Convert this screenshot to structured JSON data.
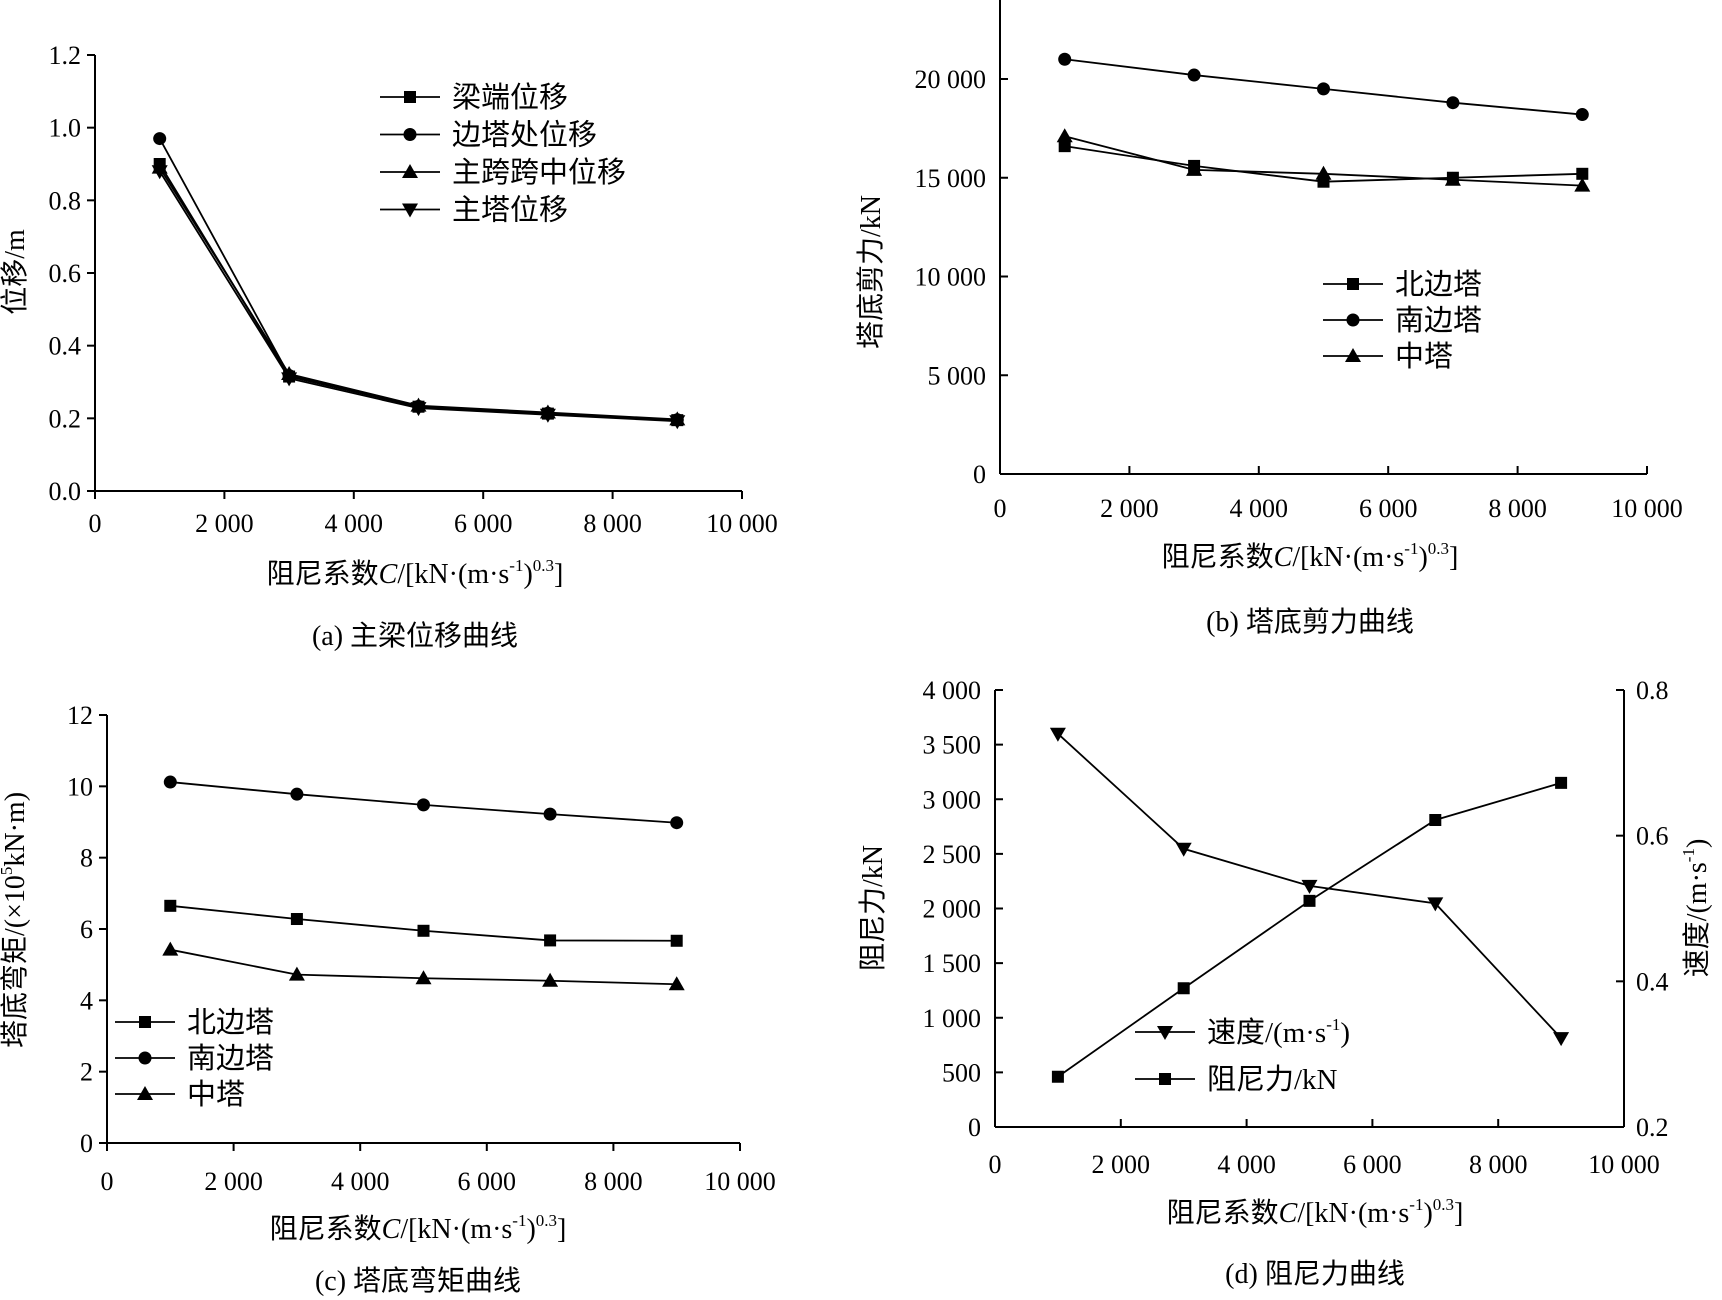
{
  "chart_data": [
    {
      "id": "a",
      "type": "line",
      "caption": "(a) 主梁位移曲线",
      "xlabel": "阻尼系数",
      "xlabel_var": "C",
      "xlabel_unit": "/[kN·(m·s",
      "xlabel_sup1": "-1",
      "xlabel_mid": ")",
      "xlabel_sup2": "0.3",
      "xlabel_end": "]",
      "ylabel": "位移/m",
      "xlim": [
        0,
        10000
      ],
      "ylim": [
        0,
        1.2
      ],
      "xticks": [
        0,
        2000,
        4000,
        6000,
        8000,
        10000
      ],
      "xtick_labels": [
        "0",
        "2 000",
        "4 000",
        "6 000",
        "8 000",
        "10 000"
      ],
      "yticks": [
        0,
        0.2,
        0.4,
        0.6,
        0.8,
        1.0,
        1.2
      ],
      "ytick_labels": [
        "0.0",
        "0.2",
        "0.4",
        "0.6",
        "0.8",
        "1.0",
        "1.2"
      ],
      "x": [
        1000,
        3000,
        5000,
        7000,
        9000
      ],
      "series": [
        {
          "name": "梁端位移",
          "marker": "square",
          "values": [
            0.9,
            0.315,
            0.232,
            0.213,
            0.195
          ]
        },
        {
          "name": "边塔处位移",
          "marker": "circle",
          "values": [
            0.97,
            0.318,
            0.233,
            0.214,
            0.196
          ]
        },
        {
          "name": "主跨跨中位移",
          "marker": "triangle-up",
          "values": [
            0.89,
            0.322,
            0.235,
            0.216,
            0.197
          ]
        },
        {
          "name": "主塔位移",
          "marker": "triangle-down",
          "values": [
            0.88,
            0.31,
            0.228,
            0.21,
            0.192
          ]
        }
      ]
    },
    {
      "id": "b",
      "type": "line",
      "caption": "(b) 塔底剪力曲线",
      "xlabel": "阻尼系数",
      "xlabel_var": "C",
      "xlabel_unit": "/[kN·(m·s",
      "xlabel_sup1": "-1",
      "xlabel_mid": ")",
      "xlabel_sup2": "0.3",
      "xlabel_end": "]",
      "ylabel": "塔底剪力/kN",
      "xlim": [
        0,
        10000
      ],
      "ylim": [
        0,
        24000
      ],
      "xticks": [
        0,
        2000,
        4000,
        6000,
        8000,
        10000
      ],
      "xtick_labels": [
        "0",
        "2 000",
        "4 000",
        "6 000",
        "8 000",
        "10 000"
      ],
      "yticks": [
        0,
        5000,
        10000,
        15000,
        20000
      ],
      "ytick_labels": [
        "0",
        "5 000",
        "10 000",
        "15 000",
        "20 000"
      ],
      "x": [
        1000,
        3000,
        5000,
        7000,
        9000
      ],
      "series": [
        {
          "name": "北边塔",
          "marker": "square",
          "values": [
            16600,
            15600,
            14800,
            15000,
            15200
          ]
        },
        {
          "name": "南边塔",
          "marker": "circle",
          "values": [
            21000,
            20200,
            19500,
            18800,
            18200
          ]
        },
        {
          "name": "中塔",
          "marker": "triangle-up",
          "values": [
            17100,
            15400,
            15200,
            14900,
            14600
          ]
        }
      ]
    },
    {
      "id": "c",
      "type": "line",
      "caption": "(c) 塔底弯矩曲线",
      "xlabel": "阻尼系数",
      "xlabel_var": "C",
      "xlabel_unit": "/[kN·(m·s",
      "xlabel_sup1": "-1",
      "xlabel_mid": ")",
      "xlabel_sup2": "0.3",
      "xlabel_end": "]",
      "ylabel_pre": "塔底弯矩/(×10",
      "ylabel_sup": "5",
      "ylabel_post": "kN·m)",
      "xlim": [
        0,
        10000
      ],
      "ylim": [
        0,
        12
      ],
      "xticks": [
        0,
        2000,
        4000,
        6000,
        8000,
        10000
      ],
      "xtick_labels": [
        "0",
        "2 000",
        "4 000",
        "6 000",
        "8 000",
        "10 000"
      ],
      "yticks": [
        0,
        2,
        4,
        6,
        8,
        10,
        12
      ],
      "ytick_labels": [
        "0",
        "2",
        "4",
        "6",
        "8",
        "10",
        "12"
      ],
      "x": [
        1000,
        3000,
        5000,
        7000,
        9000
      ],
      "series": [
        {
          "name": "北边塔",
          "marker": "square",
          "values": [
            6.65,
            6.28,
            5.95,
            5.68,
            5.67
          ]
        },
        {
          "name": "南边塔",
          "marker": "circle",
          "values": [
            10.12,
            9.78,
            9.48,
            9.22,
            8.98
          ]
        },
        {
          "name": "中塔",
          "marker": "triangle-up",
          "values": [
            5.42,
            4.72,
            4.62,
            4.55,
            4.45
          ]
        }
      ]
    },
    {
      "id": "d",
      "type": "line",
      "caption": "(d) 阻尼力曲线",
      "xlabel": "阻尼系数",
      "xlabel_var": "C",
      "xlabel_unit": "/[kN·(m·s",
      "xlabel_sup1": "-1",
      "xlabel_mid": ")",
      "xlabel_sup2": "0.3",
      "xlabel_end": "]",
      "ylabel": "阻尼力/kN",
      "y2label_pre": "速度/(m·s",
      "y2label_sup": "-1",
      "y2label_post": ")",
      "xlim": [
        0,
        10000
      ],
      "ylim": [
        0,
        4000
      ],
      "y2lim": [
        0.2,
        0.8
      ],
      "xticks": [
        0,
        2000,
        4000,
        6000,
        8000,
        10000
      ],
      "xtick_labels": [
        "0",
        "2 000",
        "4 000",
        "6 000",
        "8 000",
        "10 000"
      ],
      "yticks": [
        0,
        500,
        1000,
        1500,
        2000,
        2500,
        3000,
        3500,
        4000
      ],
      "ytick_labels": [
        "0",
        "500",
        "1 000",
        "1 500",
        "2 000",
        "2 500",
        "3 000",
        "3 500",
        "4 000"
      ],
      "y2ticks": [
        0.2,
        0.4,
        0.6,
        0.8
      ],
      "y2tick_labels": [
        "0.2",
        "0.4",
        "0.6",
        "0.8"
      ],
      "x": [
        1000,
        3000,
        5000,
        7000,
        9000
      ],
      "series": [
        {
          "name_pre": "速度/(m·s",
          "name_sup": "-1",
          "name_post": ")",
          "marker": "triangle-down",
          "axis": "right",
          "values": [
            0.74,
            0.582,
            0.531,
            0.507,
            0.322
          ]
        },
        {
          "name": "阻尼力/kN",
          "marker": "square",
          "axis": "left",
          "values": [
            460,
            1270,
            2070,
            2810,
            3150
          ]
        }
      ]
    }
  ]
}
